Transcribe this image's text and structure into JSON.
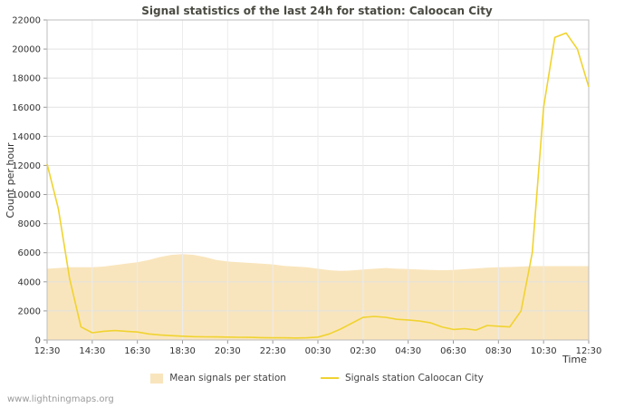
{
  "chart_data": {
    "type": "line",
    "title": "Signal statistics of the last 24h for station: Caloocan City",
    "xlabel": "Time",
    "ylabel": "Count per hour",
    "ylim": [
      0,
      22000
    ],
    "yticks": [
      0,
      2000,
      4000,
      6000,
      8000,
      10000,
      12000,
      14000,
      16000,
      18000,
      20000,
      22000
    ],
    "x_tick_labels": [
      "12:30",
      "14:30",
      "16:30",
      "18:30",
      "20:30",
      "22:30",
      "00:30",
      "02:30",
      "04:30",
      "06:30",
      "08:30",
      "10:30",
      "12:30"
    ],
    "x_ticks_every": 4,
    "grid": true,
    "legend_position": "bottom",
    "series": [
      {
        "name": "Mean signals per station",
        "kind": "area",
        "color": "#f9e5bd",
        "values": [
          4900,
          4950,
          5000,
          5000,
          5000,
          5050,
          5150,
          5250,
          5350,
          5500,
          5700,
          5850,
          5900,
          5850,
          5700,
          5500,
          5400,
          5350,
          5300,
          5250,
          5200,
          5100,
          5050,
          5000,
          4900,
          4800,
          4750,
          4780,
          4850,
          4900,
          4950,
          4900,
          4880,
          4850,
          4820,
          4800,
          4820,
          4870,
          4920,
          4970,
          5000,
          5020,
          5050,
          5080,
          5080,
          5080,
          5080,
          5080,
          5080
        ]
      },
      {
        "name": "Signals station Caloocan City",
        "kind": "line",
        "color": "#f0d330",
        "values": [
          12100,
          9000,
          4200,
          900,
          500,
          600,
          650,
          600,
          550,
          420,
          350,
          300,
          260,
          230,
          220,
          210,
          200,
          190,
          180,
          160,
          150,
          150,
          140,
          150,
          200,
          420,
          750,
          1150,
          1550,
          1620,
          1560,
          1420,
          1380,
          1300,
          1180,
          900,
          720,
          780,
          680,
          1000,
          950,
          900,
          2000,
          6000,
          16000,
          20800,
          21100,
          20000,
          17400
        ]
      }
    ]
  },
  "footer": {
    "watermark": "www.lightningmaps.org"
  }
}
